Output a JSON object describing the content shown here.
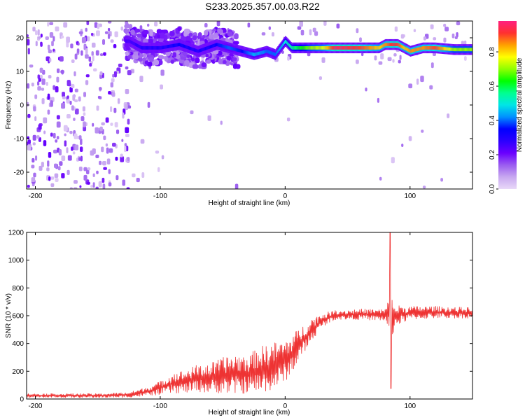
{
  "title": "S233.2025.357.00.03.R22",
  "chart_data": [
    {
      "type": "heatmap",
      "name": "spectrogram",
      "xlabel": "Height of straight line (km)",
      "ylabel": "Frequency (Hz)",
      "xlim": [
        -207,
        150
      ],
      "ylim": [
        -25,
        25
      ],
      "xticks": [
        -200,
        -100,
        0,
        100
      ],
      "yticks": [
        -20,
        -10,
        0,
        10,
        20
      ],
      "ridge": {
        "description": "dominant spectral line",
        "x": [
          -125,
          -115,
          -100,
          -85,
          -70,
          -55,
          -45,
          -35,
          -25,
          -15,
          -8,
          0,
          5,
          10,
          20,
          30,
          40,
          60,
          75,
          80,
          85,
          90,
          95,
          100,
          110,
          120,
          135,
          150
        ],
        "frequency_hz": [
          19,
          17,
          17,
          18,
          16,
          18,
          17,
          16,
          15,
          16,
          15,
          19,
          17,
          17,
          17,
          17,
          17,
          17,
          17,
          18,
          18,
          18,
          17,
          16,
          17,
          17,
          16.5,
          16.5
        ],
        "amplitude": [
          0.25,
          0.3,
          0.3,
          0.35,
          0.3,
          0.35,
          0.4,
          0.35,
          0.45,
          0.4,
          0.4,
          0.5,
          0.55,
          0.6,
          0.7,
          0.75,
          0.95,
          0.9,
          0.8,
          0.85,
          0.92,
          0.9,
          0.8,
          0.85,
          0.85,
          0.9,
          0.7,
          0.7
        ]
      },
      "colorbar": {
        "label": "Normalized spectral amplitude",
        "range": [
          0.0,
          0.98
        ],
        "ticks": [
          "0.0",
          "0.2",
          "0.4",
          "0.6",
          "0.8"
        ],
        "tick_values": [
          0.0,
          0.2,
          0.4,
          0.6,
          0.8
        ],
        "colors": [
          "#e8d8f8",
          "#c8a8f0",
          "#9a5cf0",
          "#6a00ff",
          "#2c00ff",
          "#0000ff",
          "#0090ff",
          "#00e6e6",
          "#00ff90",
          "#00ff00",
          "#90ff00",
          "#ffff00",
          "#ffa000",
          "#ff3030",
          "#ff2080"
        ]
      }
    },
    {
      "type": "line",
      "name": "snr",
      "xlabel": "Height of straight line (km)",
      "ylabel": "SNR (10 * v/v)",
      "xlim": [
        -207,
        150
      ],
      "ylim": [
        0,
        1200
      ],
      "xticks": [
        -200,
        -100,
        0,
        100
      ],
      "yticks": [
        0,
        200,
        400,
        600,
        800,
        1000,
        1200
      ],
      "color": "#ee3333",
      "envelope": {
        "x": [
          -207,
          -150,
          -125,
          -110,
          -100,
          -90,
          -80,
          -70,
          -60,
          -50,
          -40,
          -30,
          -20,
          -10,
          0,
          10,
          20,
          30,
          40,
          60,
          80,
          83,
          84,
          85,
          86,
          88,
          100,
          120,
          150
        ],
        "low": [
          10,
          8,
          10,
          20,
          30,
          40,
          40,
          50,
          40,
          40,
          30,
          40,
          40,
          60,
          120,
          250,
          400,
          520,
          570,
          570,
          560,
          500,
          75,
          300,
          450,
          520,
          570,
          580,
          580
        ],
        "high": [
          40,
          40,
          50,
          90,
          130,
          190,
          210,
          250,
          260,
          300,
          330,
          320,
          380,
          410,
          430,
          500,
          580,
          620,
          640,
          650,
          650,
          720,
          1200,
          780,
          700,
          680,
          670,
          670,
          660
        ]
      }
    }
  ]
}
